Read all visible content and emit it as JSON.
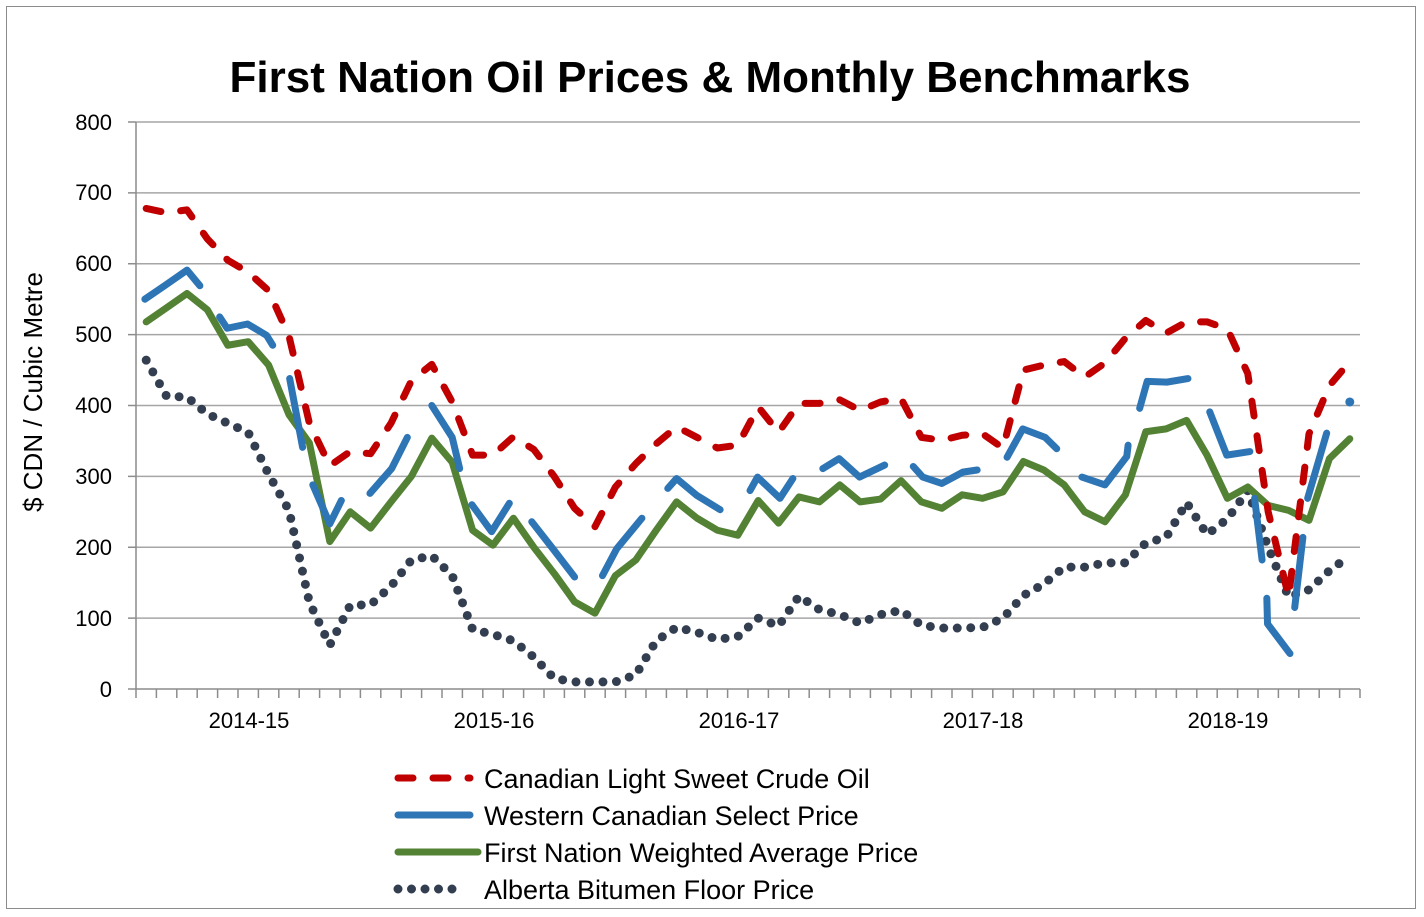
{
  "chart_data": {
    "type": "line",
    "title": "First Nation Oil Prices & Monthly Benchmarks",
    "xlabel": "",
    "ylabel": "$ CDN / Cubic Metre",
    "ylim": [
      0,
      800
    ],
    "yticks": [
      "0",
      "100",
      "200",
      "300",
      "400",
      "500",
      "600",
      "700",
      "800"
    ],
    "xrange": [
      "2014-04",
      "2019-03"
    ],
    "xtick_labels": [
      "2014-15",
      "2015-16",
      "2016-17",
      "2017-18",
      "2018-19"
    ],
    "grid": "horizontal",
    "legend_position": "bottom",
    "months": [
      "2014-04",
      "2014-05",
      "2014-06",
      "2014-07",
      "2014-08",
      "2014-09",
      "2014-10",
      "2014-11",
      "2014-12",
      "2015-01",
      "2015-02",
      "2015-03",
      "2015-04",
      "2015-05",
      "2015-06",
      "2015-07",
      "2015-08",
      "2015-09",
      "2015-10",
      "2015-11",
      "2015-12",
      "2016-01",
      "2016-02",
      "2016-03",
      "2016-04",
      "2016-05",
      "2016-06",
      "2016-07",
      "2016-08",
      "2016-09",
      "2016-10",
      "2016-11",
      "2016-12",
      "2017-01",
      "2017-02",
      "2017-03",
      "2017-04",
      "2017-05",
      "2017-06",
      "2017-07",
      "2017-08",
      "2017-09",
      "2017-10",
      "2017-11",
      "2017-12",
      "2018-01",
      "2018-02",
      "2018-03",
      "2018-04",
      "2018-05",
      "2018-06",
      "2018-07",
      "2018-08",
      "2018-09",
      "2018-10",
      "2018-11",
      "2018-12",
      "2019-01",
      "2019-02",
      "2019-03"
    ],
    "series": [
      {
        "name": "Canadian Light Sweet Crude Oil",
        "color": "#c00000",
        "style": "dashed",
        "values": [
          678,
          672,
          676,
          635,
          605,
          588,
          562,
          498,
          375,
          315,
          335,
          332,
          375,
          435,
          458,
          405,
          330,
          330,
          356,
          338,
          300,
          255,
          229,
          285,
          318,
          346,
          370,
          355,
          340,
          344,
          398,
          362,
          403,
          403,
          408,
          393,
          405,
          410,
          355,
          351,
          358,
          360,
          340,
          450,
          457,
          462,
          440,
          460,
          495,
          520,
          502,
          518,
          518,
          508,
          445,
          250,
          130,
          360,
          428,
          462
        ]
      },
      {
        "name": "Western Canadian Select Price",
        "color": "#2e75b6",
        "style": "solid-broken",
        "segments": [
          [
            [
              "2014-04-14",
              550
            ],
            [
              "2014-05-13",
              569
            ],
            [
              "2014-06-16",
              591
            ],
            [
              "2014-07-05",
              569
            ]
          ],
          [
            [
              "2014-08-04",
              525
            ],
            [
              "2014-08-15",
              509
            ],
            [
              "2014-09-15",
              515
            ],
            [
              "2014-10-13",
              499
            ],
            [
              "2014-10-22",
              485
            ]
          ],
          [
            [
              "2014-11-17",
              438
            ],
            [
              "2014-12-06",
              341
            ]
          ],
          [
            [
              "2014-12-21",
              288
            ],
            [
              "2015-01-16",
              233
            ],
            [
              "2015-02-03",
              266
            ]
          ],
          [
            [
              "2015-03-15",
              276
            ],
            [
              "2015-04-17",
              311
            ],
            [
              "2015-05-10",
              355
            ]
          ],
          [
            [
              "2015-06-16",
              400
            ],
            [
              "2015-07-16",
              355
            ],
            [
              "2015-07-27",
              311
            ]
          ],
          [
            [
              "2015-08-15",
              260
            ],
            [
              "2015-09-14",
              222
            ],
            [
              "2015-10-10",
              262
            ]
          ],
          [
            [
              "2015-11-13",
              236
            ],
            [
              "2015-12-14",
              198
            ],
            [
              "2016-01-16",
              158
            ]
          ],
          [
            [
              "2016-02-27",
              160
            ],
            [
              "2016-03-18",
              198
            ],
            [
              "2016-04-25",
              241
            ]
          ],
          [
            [
              "2016-06-03",
              283
            ],
            [
              "2016-06-16",
              297
            ],
            [
              "2016-07-16",
              273
            ],
            [
              "2016-08-20",
              253
            ]
          ],
          [
            [
              "2016-10-04",
              280
            ],
            [
              "2016-10-15",
              299
            ],
            [
              "2016-11-18",
              269
            ],
            [
              "2016-12-07",
              297
            ]
          ],
          [
            [
              "2017-01-21",
              311
            ],
            [
              "2017-02-15",
              325
            ],
            [
              "2017-03-15",
              299
            ],
            [
              "2017-04-22",
              316
            ]
          ],
          [
            [
              "2017-06-04",
              314
            ],
            [
              "2017-06-18",
              299
            ],
            [
              "2017-07-16",
              290
            ],
            [
              "2017-08-17",
              306
            ],
            [
              "2017-09-08",
              309
            ]
          ],
          [
            [
              "2017-10-22",
              327
            ],
            [
              "2017-11-15",
              367
            ],
            [
              "2017-12-18",
              355
            ],
            [
              "2018-01-05",
              339
            ]
          ],
          [
            [
              "2018-02-12",
              299
            ],
            [
              "2018-03-16",
              288
            ],
            [
              "2018-04-18",
              328
            ],
            [
              "2018-04-20",
              344
            ]
          ],
          [
            [
              "2018-05-07",
              396
            ],
            [
              "2018-05-18",
              434
            ],
            [
              "2018-06-17",
              433
            ],
            [
              "2018-07-18",
              438
            ]
          ],
          [
            [
              "2018-08-20",
              391
            ],
            [
              "2018-09-15",
              330
            ],
            [
              "2018-10-19",
              335
            ]
          ],
          [
            [
              "2018-10-26",
              269
            ],
            [
              "2018-11-07",
              182
            ]
          ],
          [
            [
              "2018-11-14",
              128
            ],
            [
              "2018-11-15",
              92
            ],
            [
              "2018-12-18",
              50
            ]
          ],
          [
            [
              "2018-12-25",
              115
            ],
            [
              "2019-01-07",
              214
            ]
          ],
          [
            [
              "2019-01-14",
              269
            ],
            [
              "2019-02-12",
              361
            ]
          ],
          [
            [
              "2019-03-16",
              405
            ]
          ]
        ]
      },
      {
        "name": "First Nation Weighted Average Price",
        "color": "#548235",
        "style": "solid",
        "values": [
          518,
          538,
          558,
          535,
          485,
          490,
          457,
          387,
          347,
          208,
          250,
          227,
          264,
          300,
          354,
          320,
          224,
          203,
          241,
          200,
          163,
          123,
          107,
          160,
          182,
          224,
          264,
          241,
          224,
          217,
          266,
          234,
          271,
          264,
          288,
          264,
          268,
          294,
          264,
          255,
          274,
          269,
          278,
          321,
          309,
          288,
          250,
          236,
          274,
          363,
          367,
          379,
          330,
          269,
          285,
          259,
          252,
          238,
          325,
          353
        ]
      },
      {
        "name": "Alberta Bitumen Floor Price",
        "color": "#333f50",
        "style": "dotted",
        "values": [
          464,
          413,
          412,
          388,
          375,
          362,
          303,
          252,
          122,
          62,
          118,
          119,
          145,
          182,
          188,
          160,
          84,
          77,
          68,
          45,
          15,
          10,
          10,
          10,
          20,
          68,
          87,
          80,
          70,
          74,
          100,
          89,
          131,
          112,
          105,
          93,
          105,
          111,
          90,
          86,
          86,
          87,
          100,
          132,
          148,
          172,
          172,
          178,
          178,
          206,
          214,
          263,
          218,
          240,
          280,
          200,
          130,
          140,
          167,
          188
        ]
      }
    ]
  }
}
